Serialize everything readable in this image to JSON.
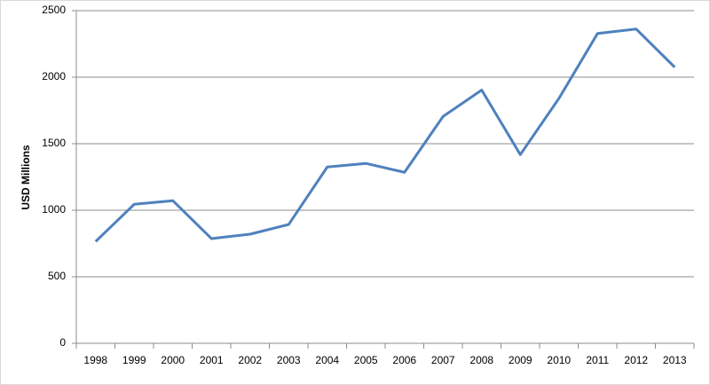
{
  "chart_data": {
    "type": "line",
    "y_label": "USD Millions",
    "categories": [
      "1998",
      "1999",
      "2000",
      "2001",
      "2002",
      "2003",
      "2004",
      "2005",
      "2006",
      "2007",
      "2008",
      "2009",
      "2010",
      "2011",
      "2012",
      "2013"
    ],
    "values": [
      765,
      1045,
      1072,
      787,
      820,
      893,
      1325,
      1352,
      1285,
      1705,
      1903,
      1418,
      1840,
      2328,
      2362,
      2075
    ],
    "color": "#4f81bd",
    "ylim": [
      0,
      2500
    ],
    "yticks": [
      0,
      500,
      1000,
      1500,
      2000,
      2500
    ],
    "grid": true
  }
}
